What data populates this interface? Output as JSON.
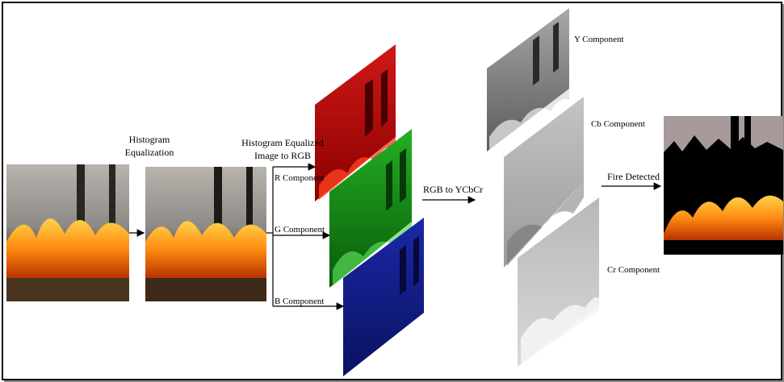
{
  "labels": {
    "hist_eq_line1": "Histogram",
    "hist_eq_line2": "Equalization",
    "hist_to_rgb_line1": "Histogram Equalized",
    "hist_to_rgb_line2": "Image to RGB",
    "r_component": "R Component",
    "g_component": "G Component",
    "b_component": "B Component",
    "rgb_to_ycbcr": "RGB to YCbCr",
    "y_component": "Y Component",
    "cb_component": "Cb Component",
    "cr_component": "Cr Component",
    "fire_detected": "Fire Detected"
  },
  "colors": {
    "red_channel": "#c81010",
    "green_channel": "#18a018",
    "blue_channel": "#1020a0",
    "y_channel": "#9a9a9a",
    "cb_channel": "#b0b0b0",
    "cr_channel": "#bdbdbd"
  }
}
